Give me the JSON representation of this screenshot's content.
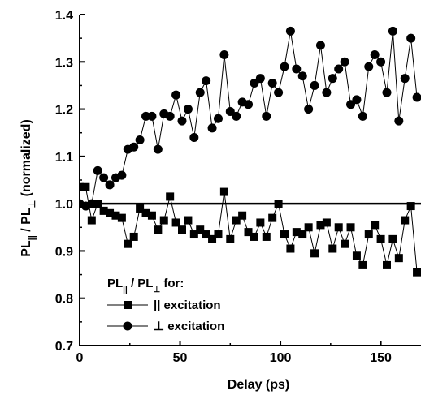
{
  "chart_data": {
    "type": "line",
    "title": "",
    "xlabel": "Delay (ps)",
    "ylabel_parts": {
      "main": "PL",
      "sub1": "||",
      "sep": " / PL",
      "sub2": "⊥",
      "suffix": " (normalized)"
    },
    "xlim": [
      0,
      170
    ],
    "ylim": [
      0.7,
      1.4
    ],
    "xticks": [
      "0",
      "50",
      "100",
      "150"
    ],
    "xtick_values": [
      0,
      50,
      100,
      150
    ],
    "yticks": [
      "0.7",
      "0.8",
      "0.9",
      "1.0",
      "1.1",
      "1.2",
      "1.3",
      "1.4"
    ],
    "ytick_values": [
      0.7,
      0.8,
      0.9,
      1.0,
      1.1,
      1.2,
      1.3,
      1.4
    ],
    "reference_line": 1.0,
    "legend": {
      "position": "bottom-left",
      "title_parts": {
        "main": "PL",
        "sub1": "||",
        "sep": " / PL",
        "sub2": "⊥",
        "suffix": " for:"
      }
    },
    "series": [
      {
        "name": "|| excitation",
        "marker": "square",
        "x": [
          0,
          3,
          6,
          9,
          12,
          15,
          18,
          21,
          24,
          27,
          30,
          33,
          36,
          39,
          42,
          45,
          48,
          51,
          54,
          57,
          60,
          63,
          66,
          69,
          72,
          75,
          78,
          81,
          84,
          87,
          90,
          93,
          96,
          99,
          102,
          105,
          108,
          111,
          114,
          117,
          120,
          123,
          126,
          129,
          132,
          135,
          138,
          141,
          144,
          147,
          150,
          153,
          156,
          159,
          162,
          165,
          168
        ],
        "values": [
          1.035,
          1.035,
          0.965,
          1.0,
          0.985,
          0.98,
          0.975,
          0.97,
          0.915,
          0.93,
          0.99,
          0.98,
          0.975,
          0.945,
          0.965,
          1.015,
          0.96,
          0.945,
          0.965,
          0.935,
          0.945,
          0.935,
          0.925,
          0.935,
          1.025,
          0.925,
          0.965,
          0.975,
          0.94,
          0.93,
          0.96,
          0.93,
          0.97,
          1.0,
          0.935,
          0.905,
          0.94,
          0.935,
          0.95,
          0.895,
          0.955,
          0.96,
          0.905,
          0.95,
          0.915,
          0.95,
          0.89,
          0.87,
          0.935,
          0.955,
          0.925,
          0.87,
          0.925,
          0.885,
          0.965,
          0.995,
          0.855
        ]
      },
      {
        "name": "⊥ excitation",
        "marker": "circle",
        "x": [
          0,
          3,
          6,
          9,
          12,
          15,
          18,
          21,
          24,
          27,
          30,
          33,
          36,
          39,
          42,
          45,
          48,
          51,
          54,
          57,
          60,
          63,
          66,
          69,
          72,
          75,
          78,
          81,
          84,
          87,
          90,
          93,
          96,
          99,
          102,
          105,
          108,
          111,
          114,
          117,
          120,
          123,
          126,
          129,
          132,
          135,
          138,
          141,
          144,
          147,
          150,
          153,
          156,
          159,
          162,
          165,
          168
        ],
        "values": [
          1.0,
          0.995,
          1.0,
          1.07,
          1.055,
          1.04,
          1.055,
          1.06,
          1.115,
          1.12,
          1.135,
          1.185,
          1.185,
          1.115,
          1.19,
          1.185,
          1.23,
          1.175,
          1.2,
          1.14,
          1.235,
          1.26,
          1.16,
          1.18,
          1.315,
          1.195,
          1.185,
          1.215,
          1.21,
          1.255,
          1.265,
          1.185,
          1.255,
          1.235,
          1.29,
          1.365,
          1.285,
          1.27,
          1.2,
          1.25,
          1.335,
          1.235,
          1.265,
          1.285,
          1.3,
          1.21,
          1.22,
          1.185,
          1.29,
          1.315,
          1.3,
          1.235,
          1.365,
          1.175,
          1.265,
          1.35,
          1.225
        ]
      }
    ]
  }
}
